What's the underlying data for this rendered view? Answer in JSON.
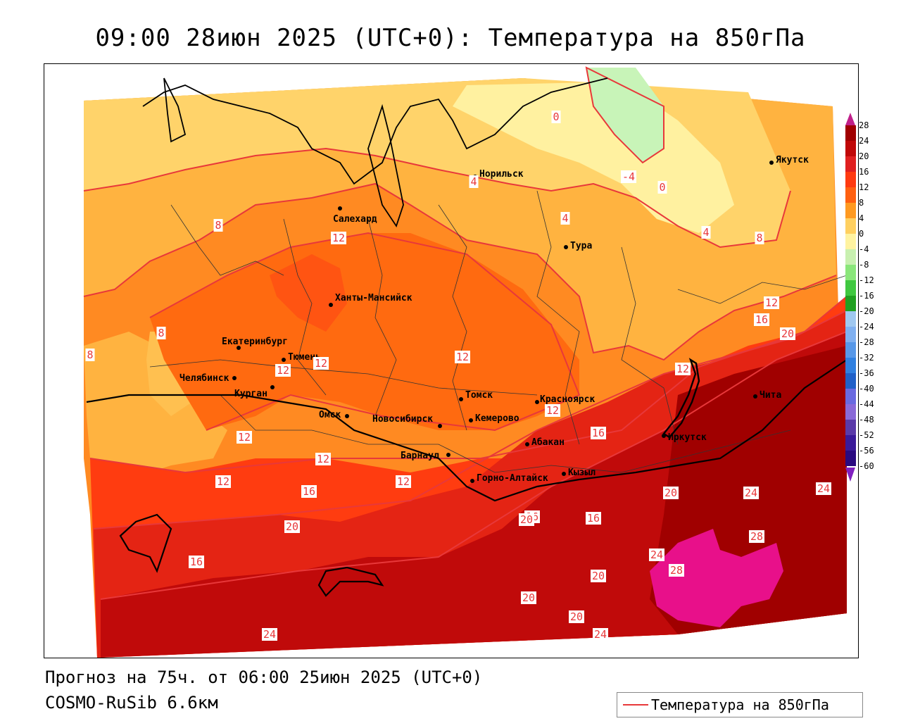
{
  "title": "09:00 28июн 2025 (UTC+0): Температура на 850гПа",
  "footer": {
    "forecast": "Прогноз на 75ч. от 06:00 25июн 2025 (UTC+0)",
    "model": "COSMO-RuSib 6.6км"
  },
  "legend": {
    "label": "Температура на 850гПа",
    "line_color": "#e8383a"
  },
  "colorbar": {
    "ticks": [
      "28",
      "24",
      "20",
      "16",
      "12",
      "8",
      "4",
      "0",
      "-4",
      "-8",
      "-12",
      "-16",
      "-20",
      "-24",
      "-28",
      "-32",
      "-36",
      "-40",
      "-44",
      "-48",
      "-52",
      "-56",
      "-60"
    ],
    "colors": [
      "#a00000",
      "#c00808",
      "#e02020",
      "#ff3a10",
      "#ff6010",
      "#ff9a20",
      "#ffd060",
      "#fff3a0",
      "#c8f0b0",
      "#8ae67a",
      "#40c840",
      "#20a020",
      "#a0c8f0",
      "#80b0f0",
      "#5898e8",
      "#3080e0",
      "#2060c8",
      "#6a6ae0",
      "#8a6ad8",
      "#5a3aa8",
      "#3a1a98",
      "#2a0a80"
    ],
    "top_color": "#c0208a",
    "bottom_color": "#8020c0"
  },
  "cities": [
    {
      "name": "Норильск"
    },
    {
      "name": "Якутск"
    },
    {
      "name": "Салехард"
    },
    {
      "name": "Тура"
    },
    {
      "name": "Ханты-Мансийск"
    },
    {
      "name": "Екатеринбург"
    },
    {
      "name": "Тюмень"
    },
    {
      "name": "Челябинск"
    },
    {
      "name": "Курган"
    },
    {
      "name": "Омск"
    },
    {
      "name": "Новосибирск"
    },
    {
      "name": "Томск"
    },
    {
      "name": "Кемерово"
    },
    {
      "name": "Красноярск"
    },
    {
      "name": "Барнаул"
    },
    {
      "name": "Абакан"
    },
    {
      "name": "Горно-Алтайск"
    },
    {
      "name": "Кызыл"
    },
    {
      "name": "Иркутск"
    },
    {
      "name": "Чита"
    }
  ],
  "isotherm_labels": [
    "0",
    "-4",
    "0",
    "4",
    "4",
    "4",
    "8",
    "8",
    "8",
    "8",
    "12",
    "12",
    "12",
    "12",
    "12",
    "12",
    "12",
    "12",
    "12",
    "12",
    "12",
    "16",
    "16",
    "16",
    "16",
    "16",
    "16",
    "20",
    "20",
    "20",
    "20",
    "20",
    "20",
    "20",
    "24",
    "24",
    "24",
    "24",
    "24",
    "28",
    "28"
  ]
}
